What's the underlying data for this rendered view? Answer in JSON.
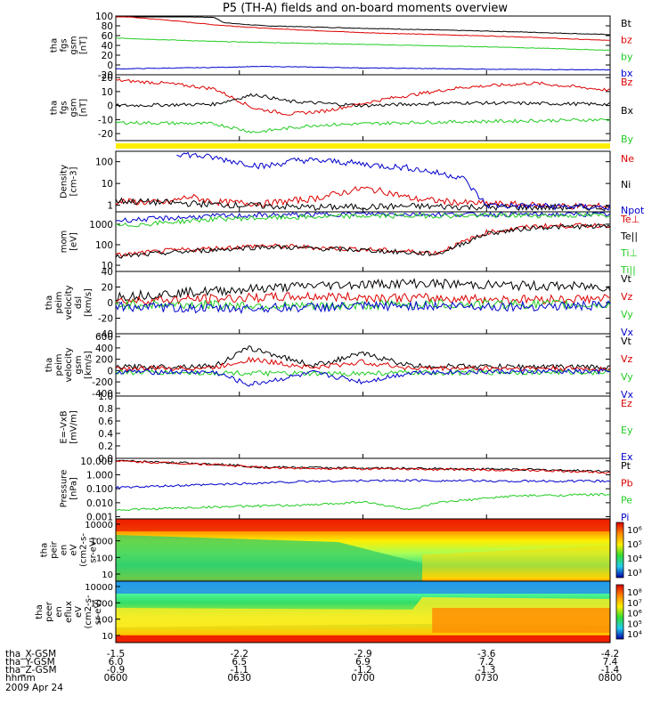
{
  "title": "P5 (TH-A) fields and on-board moments overview",
  "date_label": "2009 Apr 24",
  "time_axis": {
    "row_labels": [
      "tha_X-GSM",
      "tha_Y-GSM",
      "tha_Z-GSM",
      "hhmm"
    ],
    "ticks": [
      {
        "x": "-1.5",
        "y": "6.0",
        "z": "-0.9",
        "hhmm": "0600"
      },
      {
        "x": "-2.2",
        "y": "6.5",
        "z": "-1.1",
        "hhmm": "0630"
      },
      {
        "x": "-2.9",
        "y": "6.9",
        "z": "-1.2",
        "hhmm": "0700"
      },
      {
        "x": "-3.6",
        "y": "7.2",
        "z": "-1.3",
        "hhmm": "0730"
      },
      {
        "x": "-4.2",
        "y": "7.4",
        "z": "-1.4",
        "hhmm": "0800"
      }
    ]
  },
  "colors": {
    "black": "#000000",
    "red": "#dd0000",
    "green": "#22cc22",
    "blue": "#0000cc",
    "yellow": "#ffee00"
  },
  "chart_data": [
    {
      "type": "line",
      "ylabel": [
        "tha",
        "fgs",
        "gsm",
        "[nT]"
      ],
      "yticks": [
        "100",
        "80",
        "60",
        "40",
        "20",
        "0",
        "-20"
      ],
      "ylim": [
        -20,
        100
      ],
      "legend": [
        "Bt",
        "bz",
        "by",
        "bx"
      ],
      "series": [
        {
          "name": "Bt",
          "color": "black",
          "x": [
            0,
            0.1,
            0.2,
            0.22,
            0.3,
            0.5,
            0.8,
            1
          ],
          "y": [
            100,
            100,
            97,
            86,
            80,
            75,
            68,
            62
          ]
        },
        {
          "name": "bz",
          "color": "red",
          "x": [
            0,
            0.1,
            0.2,
            0.3,
            0.5,
            0.8,
            1
          ],
          "y": [
            100,
            92,
            82,
            75,
            66,
            58,
            50
          ]
        },
        {
          "name": "by",
          "color": "green",
          "x": [
            0,
            0.2,
            0.5,
            0.8,
            1
          ],
          "y": [
            55,
            48,
            42,
            36,
            30
          ]
        },
        {
          "name": "bx",
          "color": "blue",
          "x": [
            0,
            0.2,
            0.3,
            0.5,
            0.8,
            1
          ],
          "y": [
            -8,
            -5,
            -3,
            -6,
            -9,
            -10
          ]
        }
      ]
    },
    {
      "type": "line",
      "ylabel": [
        "tha",
        "fgs",
        "gsm",
        "[nT]"
      ],
      "yticks": [
        "20",
        "10",
        "0",
        "-10",
        "-20"
      ],
      "ylim": [
        -25,
        22
      ],
      "legend": [
        "Bz",
        "Bx",
        "By"
      ],
      "series": [
        {
          "name": "Bz",
          "color": "red",
          "x": [
            0,
            0.1,
            0.2,
            0.28,
            0.35,
            0.42,
            0.55,
            0.7,
            0.85,
            1
          ],
          "y": [
            18,
            16,
            12,
            -2,
            -6,
            -4,
            5,
            13,
            16,
            11
          ]
        },
        {
          "name": "Bx",
          "color": "black",
          "x": [
            0,
            0.2,
            0.28,
            0.35,
            0.5,
            0.7,
            1
          ],
          "y": [
            0,
            1,
            8,
            3,
            0,
            2,
            1
          ]
        },
        {
          "name": "By",
          "color": "green",
          "x": [
            0,
            0.2,
            0.28,
            0.4,
            0.6,
            0.8,
            1
          ],
          "y": [
            -12,
            -13,
            -19,
            -14,
            -12,
            -11,
            -10
          ]
        }
      ]
    },
    {
      "type": "line",
      "ylabel": [
        "Density",
        "[cm-3]"
      ],
      "yticks": [
        "100",
        "10",
        "1"
      ],
      "ylim": [
        0.5,
        300
      ],
      "yscale": "log",
      "legend": [
        "Ne",
        "Ni",
        "Npot"
      ],
      "series": [
        {
          "name": "Ne",
          "color": "red",
          "x": [
            0,
            0.1,
            0.15,
            0.2,
            0.3,
            0.4,
            0.5,
            0.55,
            0.6,
            0.7,
            0.8,
            0.9,
            1
          ],
          "y": [
            1.5,
            1.3,
            2.5,
            1.4,
            1.2,
            2,
            6,
            4,
            2,
            1.3,
            1.1,
            0.9,
            0.9
          ]
        },
        {
          "name": "Ni",
          "color": "black",
          "x": [
            0,
            0.2,
            0.4,
            0.6,
            0.8,
            1
          ],
          "y": [
            1.6,
            1.1,
            0.8,
            0.9,
            0.8,
            0.8
          ]
        },
        {
          "name": "Npot",
          "color": "blue",
          "x": [
            0.12,
            0.2,
            0.3,
            0.37,
            0.45,
            0.52,
            0.6,
            0.65,
            0.7,
            0.75,
            1
          ],
          "y": [
            250,
            150,
            60,
            120,
            100,
            70,
            50,
            30,
            20,
            1,
            0.8
          ]
        }
      ]
    },
    {
      "type": "line",
      "ylabel": [
        "mom",
        "[eV]"
      ],
      "yticks": [
        "1000",
        "100",
        "10"
      ],
      "ylim": [
        5,
        4000
      ],
      "yscale": "log",
      "legend": [
        "Te⊥",
        "Te||",
        "Ti⊥",
        "Ti||"
      ],
      "series": [
        {
          "name": "Te⊥",
          "color": "red",
          "x": [
            0,
            0.1,
            0.3,
            0.5,
            0.65,
            0.75,
            0.85,
            1
          ],
          "y": [
            30,
            50,
            90,
            60,
            40,
            400,
            800,
            900
          ]
        },
        {
          "name": "Te||",
          "color": "black",
          "x": [
            0,
            0.1,
            0.3,
            0.5,
            0.65,
            0.75,
            0.85,
            1
          ],
          "y": [
            25,
            40,
            80,
            55,
            35,
            350,
            700,
            800
          ]
        },
        {
          "name": "Ti⊥",
          "color": "blue",
          "x": [
            0,
            0.2,
            0.5,
            0.7,
            1
          ],
          "y": [
            1500,
            2500,
            3200,
            3000,
            3000
          ]
        },
        {
          "name": "Ti||",
          "color": "green",
          "x": [
            0,
            0.2,
            0.5,
            0.7,
            1
          ],
          "y": [
            800,
            1800,
            2500,
            2600,
            2700
          ]
        }
      ]
    },
    {
      "type": "line",
      "ylabel": [
        "tha",
        "peim",
        "velocity",
        "dsl",
        "[km/s]"
      ],
      "yticks": [
        "40",
        "20",
        "0",
        "-20",
        "-40"
      ],
      "ylim": [
        -40,
        40
      ],
      "legend": [
        "Vt",
        "Vz",
        "Vy",
        "Vx"
      ],
      "series": [
        {
          "name": "Vt",
          "color": "black",
          "x": [
            0,
            0.2,
            0.4,
            0.6,
            0.8,
            1
          ],
          "y": [
            8,
            15,
            22,
            25,
            22,
            20
          ]
        },
        {
          "name": "Vz",
          "color": "red",
          "x": [
            0,
            0.2,
            0.4,
            0.6,
            0.8,
            1
          ],
          "y": [
            2,
            5,
            8,
            6,
            4,
            5
          ]
        },
        {
          "name": "Vy",
          "color": "green",
          "x": [
            0,
            0.2,
            0.4,
            0.6,
            0.8,
            1
          ],
          "y": [
            -2,
            -3,
            -5,
            -2,
            -2,
            -3
          ]
        },
        {
          "name": "Vx",
          "color": "blue",
          "x": [
            0,
            0.2,
            0.4,
            0.6,
            0.8,
            1
          ],
          "y": [
            -5,
            -8,
            -6,
            -4,
            -5,
            -4
          ]
        }
      ]
    },
    {
      "type": "line",
      "ylabel": [
        "tha",
        "peim",
        "velocity",
        "gsm",
        "[km/s]"
      ],
      "yticks": [
        "600",
        "400",
        "200",
        "0",
        "-200",
        "-400"
      ],
      "ylim": [
        -450,
        650
      ],
      "legend": [
        "Vt",
        "Vz",
        "Vy",
        "Vx"
      ],
      "series": [
        {
          "name": "Vt",
          "color": "black",
          "x": [
            0,
            0.2,
            0.27,
            0.4,
            0.5,
            0.6,
            0.8,
            1
          ],
          "y": [
            60,
            80,
            400,
            90,
            300,
            80,
            70,
            60
          ]
        },
        {
          "name": "Vz",
          "color": "red",
          "x": [
            0,
            0.2,
            0.27,
            0.4,
            0.5,
            0.6,
            0.8,
            1
          ],
          "y": [
            30,
            50,
            200,
            50,
            150,
            40,
            40,
            30
          ]
        },
        {
          "name": "Vy",
          "color": "green",
          "x": [
            0,
            0.2,
            0.4,
            0.6,
            0.8,
            1
          ],
          "y": [
            -30,
            -40,
            -60,
            -40,
            -30,
            -30
          ]
        },
        {
          "name": "Vx",
          "color": "blue",
          "x": [
            0,
            0.2,
            0.27,
            0.4,
            0.5,
            0.6,
            0.8,
            1
          ],
          "y": [
            -20,
            -30,
            -250,
            -40,
            -200,
            -30,
            -20,
            -20
          ]
        }
      ]
    },
    {
      "type": "line",
      "ylabel": [
        "E=-VxB",
        "[mV/m]"
      ],
      "yticks": [
        "1.0",
        "0.8",
        "0.6",
        "0.4",
        "0.2",
        "0.0"
      ],
      "ylim": [
        0,
        1
      ],
      "legend": [
        "Ez",
        "Ey",
        "Ex"
      ],
      "series": []
    },
    {
      "type": "line",
      "ylabel": [
        "Pressure",
        "[nPa]"
      ],
      "yticks": [
        "10.000",
        "1.000",
        "0.100",
        "0.010",
        "0.001"
      ],
      "ylim": [
        0.0007,
        15
      ],
      "yscale": "log",
      "legend": [
        "Pt",
        "Pb",
        "Pe",
        "Pi"
      ],
      "series": [
        {
          "name": "Pt",
          "color": "black",
          "x": [
            0,
            0.2,
            0.3,
            0.5,
            0.8,
            1
          ],
          "y": [
            10,
            6,
            3.5,
            3,
            2.5,
            1.8
          ]
        },
        {
          "name": "Pb",
          "color": "red",
          "x": [
            0,
            0.2,
            0.3,
            0.5,
            0.8,
            1
          ],
          "y": [
            9.5,
            5.5,
            3.2,
            2.7,
            2.2,
            1.5
          ]
        },
        {
          "name": "Pe",
          "color": "green",
          "x": [
            0,
            0.2,
            0.4,
            0.5,
            0.6,
            0.65,
            0.8,
            1
          ],
          "y": [
            0.003,
            0.005,
            0.007,
            0.012,
            0.003,
            0.01,
            0.03,
            0.04
          ]
        },
        {
          "name": "Pi",
          "color": "blue",
          "x": [
            0,
            0.2,
            0.4,
            0.6,
            0.8,
            1
          ],
          "y": [
            0.12,
            0.2,
            0.35,
            0.4,
            0.35,
            0.35
          ]
        }
      ]
    },
    {
      "type": "heatmap",
      "ylabel": [
        "tha",
        "peir",
        "en",
        "eV",
        "(cm2-s-",
        "sr-eV)"
      ],
      "yticks": [
        "10000",
        "1000",
        "100",
        "10"
      ],
      "colorbar_ticks": [
        "10⁶",
        "10⁵",
        "10⁴",
        "10³"
      ]
    },
    {
      "type": "heatmap",
      "ylabel": [
        "tha",
        "peer",
        "en",
        "eflux",
        "eV",
        "(cm2-s-",
        "sr-eV)"
      ],
      "yticks": [
        "10000",
        "1000",
        "100",
        "10"
      ],
      "colorbar_ticks": [
        "10⁸",
        "10⁷",
        "10⁶",
        "10⁵",
        "10⁴"
      ]
    }
  ]
}
